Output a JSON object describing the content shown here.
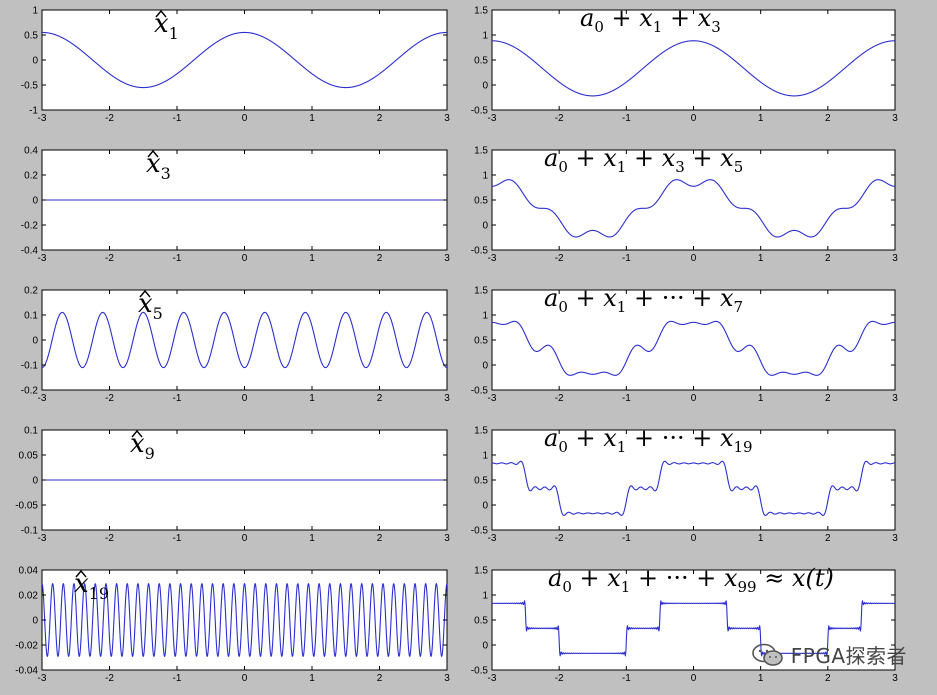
{
  "figure": {
    "background": "#c0c0c0",
    "line_color": "#2b2fd1"
  },
  "watermark": {
    "text": "FPGA探索者",
    "icon": "wechat-icon"
  },
  "chart_data": [
    {
      "type": "line",
      "signal": "harmonic",
      "label": {
        "base": "x",
        "sub": "1",
        "hat": true
      },
      "harmonics": [
        1
      ],
      "xlim": [
        -3,
        3
      ],
      "ylim": [
        -1,
        1
      ],
      "xticks": [
        "-3",
        "-2",
        "-1",
        "0",
        "1",
        "2",
        "3"
      ],
      "yticks": [
        "-1",
        "-0.5",
        "0",
        "0.5",
        "1"
      ]
    },
    {
      "type": "line",
      "signal": "partial_sum",
      "label": {
        "prefix": "a0",
        "terms": [
          "1",
          "3"
        ],
        "ellipsis": false,
        "suffix": ""
      },
      "harmonics": [
        1,
        3
      ],
      "xlim": [
        -3,
        3
      ],
      "ylim": [
        -0.5,
        1.5
      ],
      "xticks": [
        "-3",
        "-2",
        "-1",
        "0",
        "1",
        "2",
        "3"
      ],
      "yticks": [
        "-0.5",
        "0",
        "0.5",
        "1",
        "1.5"
      ]
    },
    {
      "type": "line",
      "signal": "harmonic",
      "label": {
        "base": "x",
        "sub": "3",
        "hat": true
      },
      "harmonics": [
        3
      ],
      "xlim": [
        -3,
        3
      ],
      "ylim": [
        -0.4,
        0.4
      ],
      "xticks": [
        "-3",
        "-2",
        "-1",
        "0",
        "1",
        "2",
        "3"
      ],
      "yticks": [
        "-0.4",
        "-0.2",
        "0",
        "0.2",
        "0.4"
      ]
    },
    {
      "type": "line",
      "signal": "partial_sum",
      "label": {
        "prefix": "a0",
        "terms": [
          "1",
          "3",
          "5"
        ],
        "ellipsis": false,
        "suffix": ""
      },
      "harmonics": [
        1,
        3,
        5
      ],
      "xlim": [
        -3,
        3
      ],
      "ylim": [
        -0.5,
        1.5
      ],
      "xticks": [
        "-3",
        "-2",
        "-1",
        "0",
        "1",
        "2",
        "3"
      ],
      "yticks": [
        "-0.5",
        "0",
        "0.5",
        "1",
        "1.5"
      ]
    },
    {
      "type": "line",
      "signal": "harmonic",
      "label": {
        "base": "x",
        "sub": "5",
        "hat": true
      },
      "harmonics": [
        5
      ],
      "xlim": [
        -3,
        3
      ],
      "ylim": [
        -0.2,
        0.2
      ],
      "xticks": [
        "-3",
        "-2",
        "-1",
        "0",
        "1",
        "2",
        "3"
      ],
      "yticks": [
        "-0.2",
        "-0.1",
        "0",
        "0.1",
        "0.2"
      ]
    },
    {
      "type": "line",
      "signal": "partial_sum",
      "label": {
        "prefix": "a0",
        "terms": [
          "1",
          "7"
        ],
        "ellipsis": true,
        "suffix": ""
      },
      "harmonics": [
        1,
        3,
        5,
        7
      ],
      "xlim": [
        -3,
        3
      ],
      "ylim": [
        -0.5,
        1.5
      ],
      "xticks": [
        "-3",
        "-2",
        "-1",
        "0",
        "1",
        "2",
        "3"
      ],
      "yticks": [
        "-0.5",
        "0",
        "0.5",
        "1",
        "1.5"
      ]
    },
    {
      "type": "line",
      "signal": "harmonic",
      "label": {
        "base": "x",
        "sub": "9",
        "hat": true
      },
      "harmonics": [
        9
      ],
      "xlim": [
        -3,
        3
      ],
      "ylim": [
        -0.1,
        0.1
      ],
      "xticks": [
        "-3",
        "-2",
        "-1",
        "0",
        "1",
        "2",
        "3"
      ],
      "yticks": [
        "-0.1",
        "-0.05",
        "0",
        "0.05",
        "0.1"
      ]
    },
    {
      "type": "line",
      "signal": "partial_sum",
      "label": {
        "prefix": "a0",
        "terms": [
          "1",
          "19"
        ],
        "ellipsis": true,
        "suffix": ""
      },
      "harmonics": [
        1,
        3,
        5,
        7,
        9,
        11,
        13,
        15,
        17,
        19
      ],
      "xlim": [
        -3,
        3
      ],
      "ylim": [
        -0.5,
        1.5
      ],
      "xticks": [
        "-3",
        "-2",
        "-1",
        "0",
        "1",
        "2",
        "3"
      ],
      "yticks": [
        "-0.5",
        "0",
        "0.5",
        "1",
        "1.5"
      ]
    },
    {
      "type": "line",
      "signal": "harmonic",
      "label": {
        "base": "x",
        "sub": "19",
        "hat": true
      },
      "harmonics": [
        19
      ],
      "xlim": [
        -3,
        3
      ],
      "ylim": [
        -0.04,
        0.04
      ],
      "xticks": [
        "-3",
        "-2",
        "-1",
        "0",
        "1",
        "2",
        "3"
      ],
      "yticks": [
        "-0.04",
        "-0.02",
        "0",
        "0.02",
        "0.04"
      ]
    },
    {
      "type": "line",
      "signal": "partial_sum",
      "label": {
        "prefix": "a0",
        "terms": [
          "1",
          "99"
        ],
        "ellipsis": true,
        "suffix": "≈ x(t)"
      },
      "harmonics_up_to": 99,
      "xlim": [
        -3,
        3
      ],
      "ylim": [
        -0.5,
        1.5
      ],
      "xticks": [
        "-3",
        "-2",
        "-1",
        "0",
        "1",
        "2",
        "3"
      ],
      "yticks": [
        "-0.5",
        "0",
        "0.5",
        "1",
        "1.5"
      ]
    }
  ]
}
